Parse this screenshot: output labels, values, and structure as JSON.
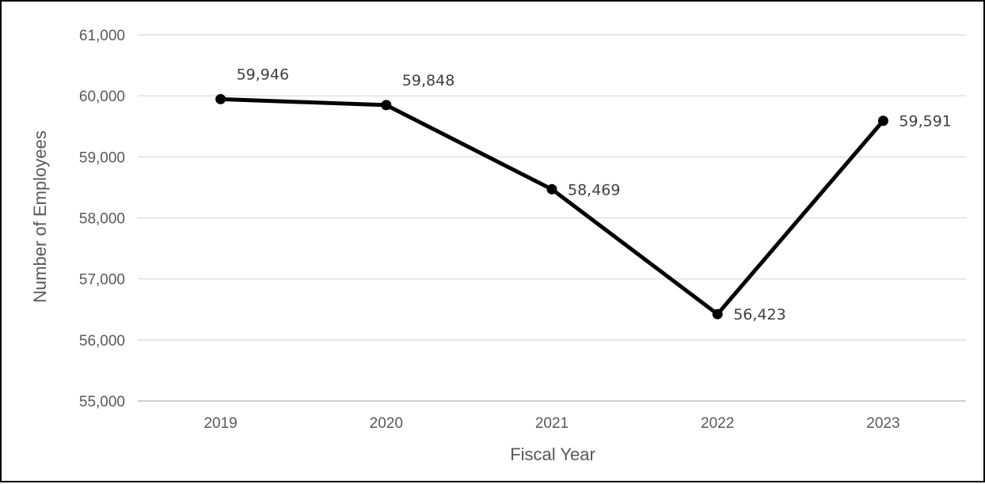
{
  "chart_data": {
    "type": "line",
    "title": "",
    "xlabel": "Fiscal Year",
    "ylabel": "Number of Employees",
    "categories": [
      "2019",
      "2020",
      "2021",
      "2022",
      "2023"
    ],
    "series": [
      {
        "values": [
          59946,
          59848,
          58469,
          56423,
          59591
        ],
        "data_labels": [
          "59,946",
          "59,848",
          "58,469",
          "56,423",
          "59,591"
        ],
        "color": "#000000"
      }
    ],
    "ylim": [
      55000,
      61000
    ],
    "yticks": [
      55000,
      56000,
      57000,
      58000,
      59000,
      60000,
      61000
    ],
    "ytick_labels": [
      "55,000",
      "56,000",
      "57,000",
      "58,000",
      "59,000",
      "60,000",
      "61,000"
    ],
    "grid": "horizontal",
    "legend": "none",
    "colors": {
      "line": "#000000",
      "grid": "#d9d9d9",
      "axis": "#bfbfbf",
      "text": "#595959"
    }
  }
}
